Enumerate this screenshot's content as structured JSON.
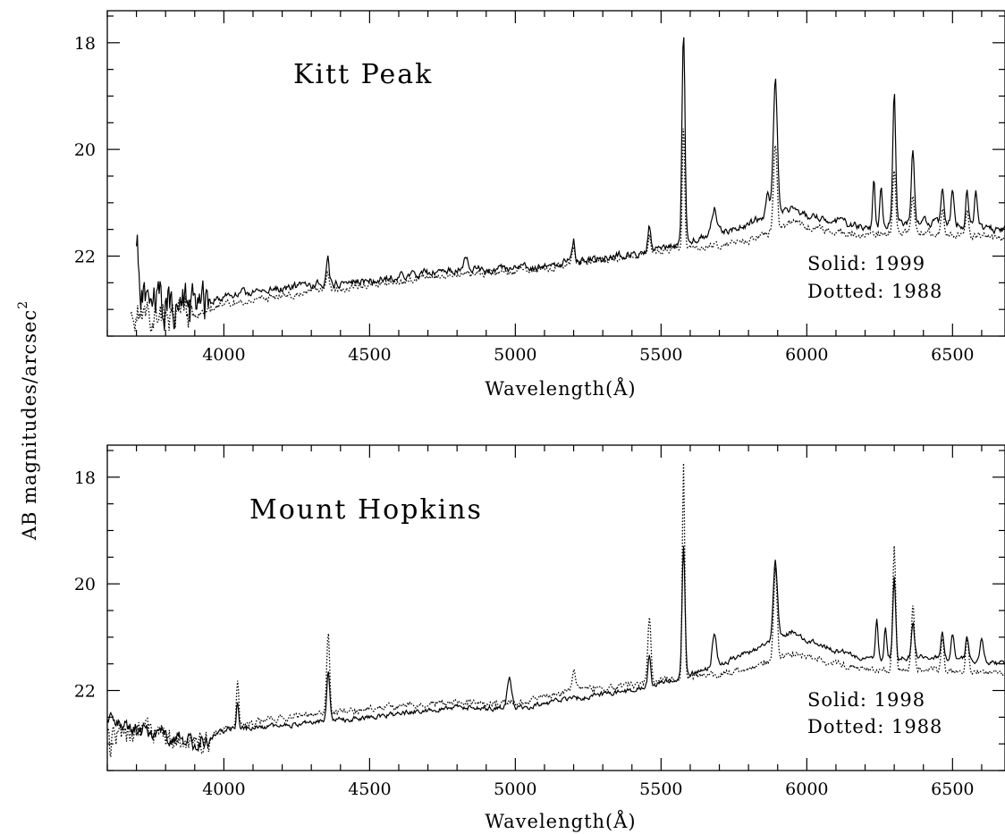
{
  "ylabel": "AB magnitudes/arcsec",
  "ylabel_superscript": "2",
  "chart_data": [
    {
      "type": "line",
      "title": "Kitt Peak",
      "xlabel": "Wavelength(Å)",
      "ylabel": "AB magnitudes/arcsec²",
      "xlim": [
        3600,
        6680
      ],
      "ylim": [
        23.5,
        17.4
      ],
      "y_inverted": true,
      "x_ticks": [
        "4000",
        "4500",
        "5000",
        "5500",
        "6000",
        "6500"
      ],
      "y_ticks": [
        "18",
        "20",
        "22"
      ],
      "legend": [
        "Solid: 1999",
        "Dotted: 1988"
      ],
      "legend_position": "bottom-right",
      "series": [
        {
          "name": "1999",
          "style": "solid",
          "base": [
            [
              3700,
              22.8
            ],
            [
              3900,
              23.0
            ],
            [
              4000,
              22.75
            ],
            [
              4200,
              22.6
            ],
            [
              4500,
              22.45
            ],
            [
              4800,
              22.25
            ],
            [
              5000,
              22.25
            ],
            [
              5200,
              22.1
            ],
            [
              5400,
              21.95
            ],
            [
              5500,
              21.85
            ],
            [
              5600,
              21.7
            ],
            [
              5700,
              21.55
            ],
            [
              5800,
              21.4
            ],
            [
              5900,
              21.15
            ],
            [
              5950,
              21.1
            ],
            [
              6000,
              21.25
            ],
            [
              6100,
              21.35
            ],
            [
              6200,
              21.45
            ],
            [
              6300,
              21.4
            ],
            [
              6400,
              21.35
            ],
            [
              6500,
              21.4
            ],
            [
              6680,
              21.5
            ]
          ],
          "lines": [
            [
              3702,
              21.8,
              3
            ],
            [
              4356,
              22.0,
              5
            ],
            [
              4830,
              22.0,
              8
            ],
            [
              5200,
              21.7,
              5
            ],
            [
              5460,
              21.4,
              5
            ],
            [
              5577,
              17.8,
              5
            ],
            [
              5683,
              21.1,
              8
            ],
            [
              5865,
              20.8,
              6
            ],
            [
              5892,
              18.7,
              7
            ],
            [
              6300,
              19.0,
              5
            ],
            [
              6364,
              20.0,
              5
            ],
            [
              6230,
              20.6,
              4
            ],
            [
              6255,
              20.7,
              4
            ],
            [
              6465,
              20.7,
              5
            ],
            [
              6500,
              20.7,
              5
            ],
            [
              6550,
              20.8,
              5
            ],
            [
              6580,
              20.8,
              5
            ]
          ],
          "noise_seed": 11,
          "noise": 0.06,
          "noise_blue": 0.35,
          "blue_edge": 3950
        },
        {
          "name": "1988",
          "style": "dotted",
          "base": [
            [
              3680,
              23.2
            ],
            [
              3900,
              23.1
            ],
            [
              4000,
              22.9
            ],
            [
              4200,
              22.75
            ],
            [
              4500,
              22.55
            ],
            [
              4800,
              22.35
            ],
            [
              5000,
              22.3
            ],
            [
              5200,
              22.15
            ],
            [
              5400,
              22.0
            ],
            [
              5500,
              21.9
            ],
            [
              5600,
              21.85
            ],
            [
              5700,
              21.8
            ],
            [
              5800,
              21.7
            ],
            [
              5900,
              21.5
            ],
            [
              5950,
              21.35
            ],
            [
              6000,
              21.45
            ],
            [
              6100,
              21.55
            ],
            [
              6200,
              21.6
            ],
            [
              6300,
              21.55
            ],
            [
              6400,
              21.55
            ],
            [
              6500,
              21.6
            ],
            [
              6680,
              21.65
            ]
          ],
          "lines": [
            [
              3705,
              23.0,
              3
            ],
            [
              4356,
              22.3,
              5
            ],
            [
              5200,
              21.9,
              5
            ],
            [
              5460,
              21.6,
              5
            ],
            [
              5577,
              19.5,
              4
            ],
            [
              5892,
              19.9,
              6
            ],
            [
              6300,
              20.4,
              5
            ],
            [
              6364,
              20.8,
              5
            ],
            [
              6465,
              21.1,
              5
            ],
            [
              6550,
              21.2,
              5
            ]
          ],
          "noise_seed": 23,
          "noise": 0.05,
          "noise_blue": 0.25,
          "blue_edge": 3900
        }
      ]
    },
    {
      "type": "line",
      "title": "Mount Hopkins",
      "xlabel": "Wavelength(Å)",
      "ylabel": "AB magnitudes/arcsec²",
      "xlim": [
        3600,
        6680
      ],
      "ylim": [
        23.5,
        17.4
      ],
      "y_inverted": true,
      "x_ticks": [
        "4000",
        "4500",
        "5000",
        "5500",
        "6000",
        "6500"
      ],
      "y_ticks": [
        "18",
        "20",
        "22"
      ],
      "legend": [
        "Solid: 1998",
        "Dotted: 1988"
      ],
      "legend_position": "bottom-right",
      "series": [
        {
          "name": "1998",
          "style": "solid",
          "base": [
            [
              3600,
              22.6
            ],
            [
              3800,
              22.85
            ],
            [
              3900,
              23.0
            ],
            [
              4000,
              22.75
            ],
            [
              4200,
              22.65
            ],
            [
              4500,
              22.5
            ],
            [
              4800,
              22.3
            ],
            [
              5000,
              22.35
            ],
            [
              5200,
              22.15
            ],
            [
              5400,
              22.0
            ],
            [
              5500,
              21.85
            ],
            [
              5600,
              21.7
            ],
            [
              5700,
              21.5
            ],
            [
              5800,
              21.3
            ],
            [
              5900,
              21.0
            ],
            [
              5950,
              20.9
            ],
            [
              6000,
              21.05
            ],
            [
              6100,
              21.25
            ],
            [
              6200,
              21.4
            ],
            [
              6300,
              21.4
            ],
            [
              6400,
              21.35
            ],
            [
              6500,
              21.4
            ],
            [
              6680,
              21.5
            ]
          ],
          "lines": [
            [
              4047,
              22.2,
              4
            ],
            [
              4358,
              21.6,
              5
            ],
            [
              4980,
              21.8,
              8
            ],
            [
              5460,
              21.3,
              5
            ],
            [
              5577,
              19.3,
              5
            ],
            [
              5683,
              20.9,
              7
            ],
            [
              5892,
              19.6,
              7
            ],
            [
              6300,
              19.9,
              5
            ],
            [
              6364,
              20.7,
              5
            ],
            [
              6240,
              20.7,
              4
            ],
            [
              6270,
              20.8,
              4
            ],
            [
              6465,
              20.9,
              5
            ],
            [
              6500,
              20.9,
              5
            ],
            [
              6550,
              21.0,
              5
            ],
            [
              6600,
              21.0,
              5
            ]
          ],
          "noise_seed": 37,
          "noise": 0.04,
          "noise_blue": 0.12,
          "blue_edge": 3950
        },
        {
          "name": "1988",
          "style": "dotted",
          "base": [
            [
              3600,
              22.9
            ],
            [
              3800,
              22.8
            ],
            [
              3900,
              23.1
            ],
            [
              4000,
              22.7
            ],
            [
              4200,
              22.5
            ],
            [
              4500,
              22.35
            ],
            [
              4800,
              22.2
            ],
            [
              5000,
              22.25
            ],
            [
              5200,
              22.0
            ],
            [
              5400,
              21.9
            ],
            [
              5500,
              21.8
            ],
            [
              5600,
              21.75
            ],
            [
              5700,
              21.7
            ],
            [
              5800,
              21.6
            ],
            [
              5900,
              21.4
            ],
            [
              5950,
              21.3
            ],
            [
              6000,
              21.35
            ],
            [
              6100,
              21.5
            ],
            [
              6200,
              21.6
            ],
            [
              6300,
              21.6
            ],
            [
              6400,
              21.6
            ],
            [
              6500,
              21.65
            ],
            [
              6680,
              21.7
            ]
          ],
          "lines": [
            [
              3610,
              23.3,
              3
            ],
            [
              4047,
              21.8,
              4
            ],
            [
              4358,
              20.9,
              5
            ],
            [
              5200,
              21.6,
              5
            ],
            [
              5460,
              20.6,
              5
            ],
            [
              5577,
              17.8,
              4
            ],
            [
              5892,
              19.7,
              6
            ],
            [
              6300,
              19.3,
              5
            ],
            [
              6364,
              20.4,
              5
            ],
            [
              6465,
              21.0,
              5
            ],
            [
              6550,
              21.0,
              5
            ]
          ],
          "noise_seed": 53,
          "noise": 0.05,
          "noise_blue": 0.2,
          "blue_edge": 3950
        }
      ]
    }
  ]
}
